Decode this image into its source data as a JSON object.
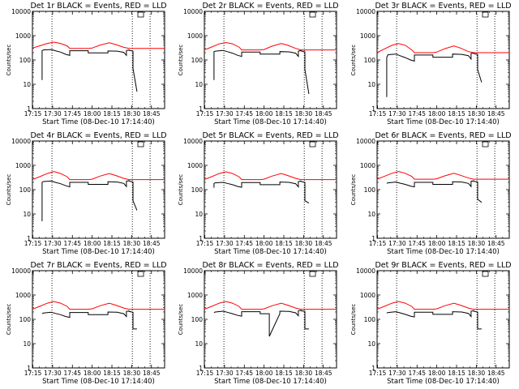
{
  "chart_data": {
    "type": "line",
    "x_tick_labels": [
      "17:15",
      "17:30",
      "17:45",
      "18:00",
      "18:15",
      "18:30",
      "18:45"
    ],
    "x_tick_minutes": [
      15,
      30,
      45,
      60,
      75,
      90,
      105
    ],
    "xlim_minutes": [
      14.67,
      115
    ],
    "y_tick_labels": [
      "1",
      "10",
      "100",
      "1000",
      "10000"
    ],
    "yscale": "log",
    "ylim": [
      1,
      10000
    ],
    "xlabel": "Start Time (08-Dec-10 17:14:40)",
    "ylabel": "Counts/sec",
    "vertical_lines_minutes": [
      29.5,
      90.5,
      104
    ],
    "panels": [
      {
        "title": "Det 1r BLACK = Events, RED = LLD",
        "series": [
          {
            "name": "Events",
            "color": "#000000",
            "x": [
              22,
              22,
              23,
              29,
              32,
              36,
              40,
              43,
              43,
              57,
              57,
              72,
              72,
              79,
              84,
              86,
              86,
              88,
              88,
              91,
              91,
              94
            ],
            "y": [
              15,
              240,
              260,
              270,
              240,
              210,
              170,
              155,
              240,
              240,
              195,
              195,
              235,
              230,
              205,
              155,
              245,
              260,
              250,
              230,
              45,
              5
            ]
          },
          {
            "name": "LLD",
            "color": "#ff0000",
            "x": [
              14.67,
              20,
              26,
              31,
              36,
              41,
              43,
              57,
              60,
              66,
              73,
              78,
              84,
              88,
              92,
              96,
              115
            ],
            "y": [
              310,
              380,
              480,
              540,
              480,
              380,
              300,
              300,
              310,
              410,
              510,
              430,
              330,
              300,
              300,
              300,
              300
            ]
          }
        ]
      },
      {
        "title": "Det 2r BLACK = Events, RED = LLD",
        "series": [
          {
            "name": "Events",
            "color": "#000000",
            "x": [
              22,
              22,
              23,
              29,
              32,
              36,
              40,
              43,
              43,
              57,
              57,
              72,
              72,
              79,
              84,
              86,
              86,
              88,
              88,
              91,
              91,
              94
            ],
            "y": [
              15,
              220,
              230,
              245,
              220,
              190,
              155,
              140,
              210,
              210,
              175,
              175,
              220,
              215,
              190,
              140,
              230,
              245,
              235,
              215,
              40,
              4
            ]
          },
          {
            "name": "LLD",
            "color": "#ff0000",
            "x": [
              14.67,
              20,
              26,
              31,
              36,
              41,
              43,
              57,
              60,
              66,
              73,
              78,
              84,
              88,
              92,
              96,
              115
            ],
            "y": [
              260,
              340,
              460,
              520,
              460,
              340,
              260,
              260,
              270,
              370,
              480,
              400,
              300,
              260,
              260,
              260,
              260
            ]
          }
        ]
      },
      {
        "title": "Det 3r BLACK = Events, RED = LLD",
        "series": [
          {
            "name": "Events",
            "color": "#000000",
            "x": [
              22,
              22,
              23,
              29,
              32,
              36,
              40,
              43,
              43,
              57,
              57,
              72,
              72,
              79,
              84,
              86,
              86,
              88,
              88,
              91,
              91,
              94
            ],
            "y": [
              3,
              130,
              165,
              175,
              150,
              125,
              100,
              90,
              160,
              160,
              130,
              130,
              175,
              170,
              150,
              110,
              185,
              195,
              185,
              170,
              40,
              12
            ]
          },
          {
            "name": "LLD",
            "color": "#ff0000",
            "x": [
              14.67,
              20,
              26,
              31,
              36,
              41,
              43,
              57,
              60,
              66,
              73,
              78,
              84,
              88,
              92,
              96,
              115
            ],
            "y": [
              200,
              280,
              400,
              470,
              400,
              260,
              200,
              200,
              210,
              290,
              380,
              310,
              220,
              200,
              200,
              200,
              200
            ]
          }
        ]
      },
      {
        "title": "Det 4r BLACK = Events, RED = LLD",
        "series": [
          {
            "name": "Events",
            "color": "#000000",
            "x": [
              22,
              22,
              23,
              29,
              32,
              36,
              40,
              43,
              43,
              57,
              57,
              72,
              72,
              79,
              84,
              86,
              86,
              88,
              88,
              91,
              91,
              94
            ],
            "y": [
              5,
              200,
              215,
              225,
              200,
              175,
              145,
              130,
              200,
              200,
              165,
              165,
              210,
              205,
              180,
              135,
              220,
              235,
              225,
              205,
              35,
              14
            ]
          },
          {
            "name": "LLD",
            "color": "#ff0000",
            "x": [
              14.67,
              20,
              26,
              31,
              36,
              41,
              43,
              57,
              60,
              66,
              73,
              78,
              84,
              88,
              92,
              96,
              115
            ],
            "y": [
              260,
              340,
              460,
              560,
              460,
              340,
              260,
              260,
              270,
              360,
              460,
              380,
              290,
              260,
              260,
              260,
              260
            ]
          }
        ]
      },
      {
        "title": "Det 5r BLACK = Events, RED = LLD",
        "series": [
          {
            "name": "Events",
            "color": "#000000",
            "x": [
              22,
              22,
              23,
              29,
              32,
              36,
              40,
              43,
              43,
              57,
              57,
              72,
              72,
              79,
              84,
              86,
              86,
              88,
              88,
              91,
              91,
              94
            ],
            "y": [
              120,
              180,
              190,
              200,
              180,
              160,
              135,
              125,
              195,
              195,
              160,
              160,
              205,
              200,
              175,
              130,
              215,
              225,
              215,
              200,
              35,
              28
            ]
          },
          {
            "name": "LLD",
            "color": "#ff0000",
            "x": [
              14.67,
              20,
              26,
              31,
              36,
              41,
              43,
              57,
              60,
              66,
              73,
              78,
              84,
              88,
              92,
              96,
              115
            ],
            "y": [
              260,
              340,
              460,
              540,
              460,
              340,
              260,
              260,
              270,
              360,
              460,
              380,
              290,
              260,
              260,
              260,
              260
            ]
          }
        ]
      },
      {
        "title": "Det 6r BLACK = Events, RED = LLD",
        "series": [
          {
            "name": "Events",
            "color": "#000000",
            "x": [
              22,
              22,
              23,
              29,
              32,
              36,
              40,
              43,
              43,
              57,
              57,
              72,
              72,
              79,
              84,
              86,
              86,
              88,
              88,
              91,
              91,
              94
            ],
            "y": [
              180,
              180,
              190,
              205,
              185,
              165,
              140,
              130,
              200,
              200,
              165,
              165,
              210,
              205,
              180,
              135,
              220,
              230,
              220,
              205,
              40,
              30
            ]
          },
          {
            "name": "LLD",
            "color": "#ff0000",
            "x": [
              14.67,
              20,
              26,
              31,
              36,
              41,
              43,
              57,
              60,
              66,
              73,
              78,
              84,
              88,
              92,
              96,
              115
            ],
            "y": [
              270,
              350,
              470,
              560,
              470,
              350,
              270,
              270,
              280,
              370,
              470,
              390,
              300,
              270,
              270,
              270,
              270
            ]
          }
        ]
      },
      {
        "title": "Det 7r BLACK = Events, RED = LLD",
        "series": [
          {
            "name": "Events",
            "color": "#000000",
            "x": [
              22,
              22,
              23,
              29,
              32,
              36,
              40,
              43,
              43,
              57,
              57,
              72,
              72,
              79,
              84,
              86,
              86,
              88,
              88,
              91,
              91,
              94
            ],
            "y": [
              170,
              170,
              180,
              195,
              175,
              155,
              130,
              120,
              190,
              190,
              155,
              155,
              200,
              195,
              170,
              130,
              210,
              220,
              210,
              195,
              40,
              40
            ]
          },
          {
            "name": "LLD",
            "color": "#ff0000",
            "x": [
              14.67,
              20,
              26,
              31,
              36,
              41,
              43,
              57,
              60,
              66,
              73,
              78,
              84,
              88,
              92,
              96,
              115
            ],
            "y": [
              260,
              340,
              460,
              540,
              460,
              340,
              260,
              260,
              270,
              360,
              460,
              380,
              290,
              260,
              260,
              260,
              260
            ]
          }
        ]
      },
      {
        "title": "Det 8r BLACK = Events, RED = LLD",
        "series": [
          {
            "name": "Events",
            "color": "#000000",
            "x": [
              22,
              22,
              23,
              29,
              32,
              36,
              40,
              43,
              43,
              57,
              57,
              64,
              64,
              72,
              72,
              79,
              84,
              86,
              86,
              88,
              88,
              91,
              91,
              94
            ],
            "y": [
              190,
              190,
              200,
              215,
              195,
              170,
              145,
              135,
              205,
              205,
              170,
              170,
              20,
              170,
              215,
              210,
              185,
              140,
              225,
              235,
              225,
              210,
              40,
              40
            ]
          },
          {
            "name": "LLD",
            "color": "#ff0000",
            "x": [
              14.67,
              20,
              26,
              31,
              36,
              41,
              43,
              57,
              60,
              66,
              73,
              78,
              84,
              88,
              92,
              96,
              115
            ],
            "y": [
              260,
              340,
              460,
              540,
              460,
              340,
              260,
              260,
              270,
              360,
              460,
              380,
              290,
              260,
              260,
              260,
              260
            ]
          }
        ]
      },
      {
        "title": "Det 9r BLACK = Events, RED = LLD",
        "series": [
          {
            "name": "Events",
            "color": "#000000",
            "x": [
              22,
              22,
              23,
              29,
              32,
              36,
              40,
              43,
              43,
              57,
              57,
              72,
              72,
              79,
              84,
              86,
              86,
              88,
              88,
              91,
              91,
              94
            ],
            "y": [
              180,
              180,
              190,
              205,
              185,
              160,
              135,
              125,
              195,
              195,
              160,
              160,
              205,
              200,
              175,
              130,
              215,
              225,
              215,
              200,
              40,
              40
            ]
          },
          {
            "name": "LLD",
            "color": "#ff0000",
            "x": [
              14.67,
              20,
              26,
              31,
              36,
              41,
              43,
              57,
              60,
              66,
              73,
              78,
              84,
              88,
              92,
              96,
              115
            ],
            "y": [
              260,
              340,
              460,
              540,
              460,
              340,
              260,
              260,
              270,
              360,
              460,
              380,
              290,
              260,
              260,
              260,
              260
            ]
          }
        ]
      }
    ]
  }
}
